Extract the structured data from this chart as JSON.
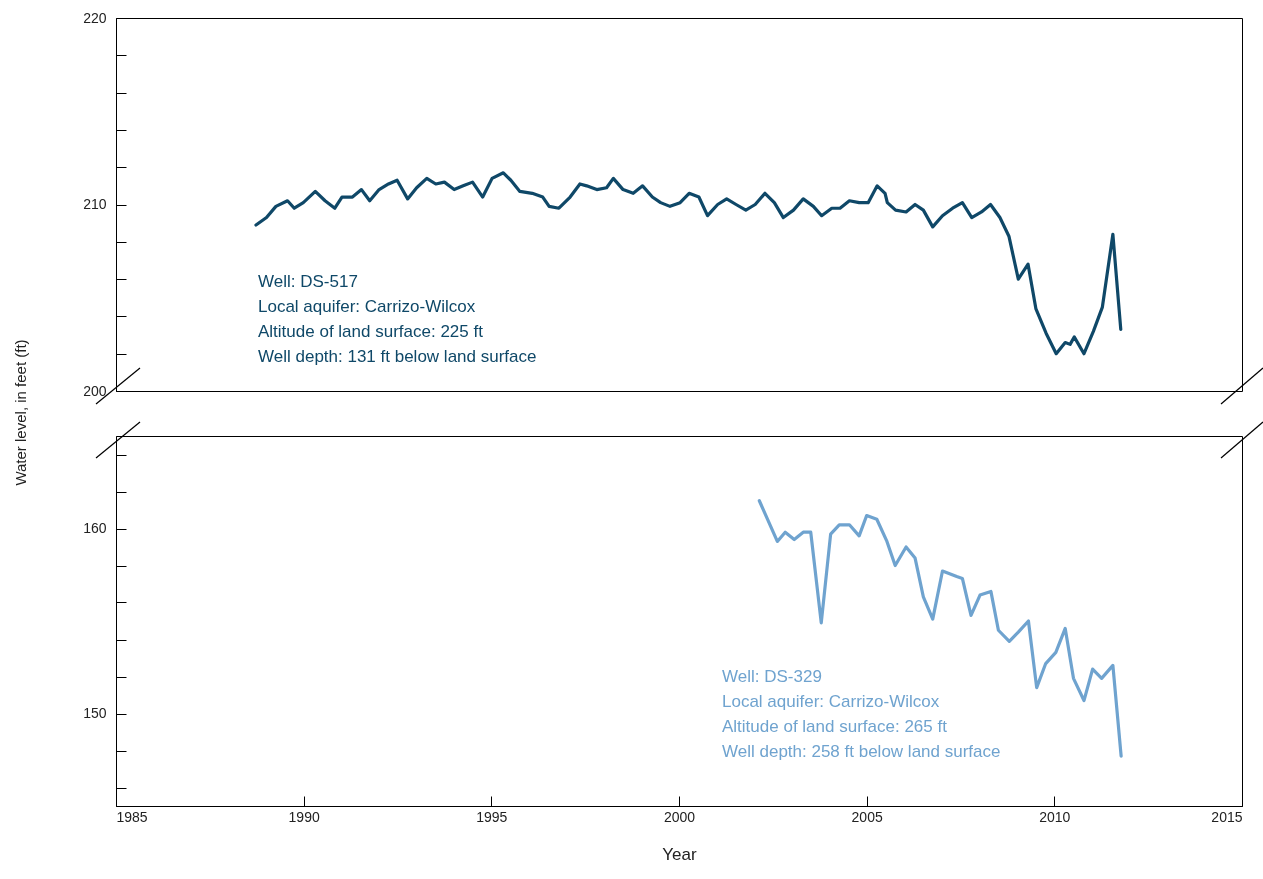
{
  "chart_data": [
    {
      "type": "line",
      "ylabel": "Water level, in feet (ft)",
      "xlim": [
        1985,
        2015
      ],
      "xticks": [
        1985,
        1990,
        1995,
        2000,
        2005,
        2010,
        2015
      ],
      "ylim": [
        200,
        220
      ],
      "yticks": [
        200,
        {
          "value": 202,
          "label": null
        },
        {
          "value": 204,
          "label": null
        },
        {
          "value": 206,
          "label": null
        },
        {
          "value": 208,
          "label": null
        },
        210,
        {
          "value": 212,
          "label": null
        },
        {
          "value": 214,
          "label": null
        },
        {
          "value": 216,
          "label": null
        },
        {
          "value": 218,
          "label": null
        },
        220
      ],
      "tick_labels": "y",
      "grid": false,
      "x": [
        1988.73,
        1989.01,
        1989.26,
        1989.57,
        1989.75,
        1989.99,
        1990.31,
        1990.57,
        1990.83,
        1991.02,
        1991.3,
        1991.54,
        1991.76,
        1992.01,
        1992.26,
        1992.49,
        1992.77,
        1993.01,
        1993.28,
        1993.52,
        1993.75,
        1994.01,
        1994.25,
        1994.5,
        1994.77,
        1995.02,
        1995.32,
        1995.52,
        1995.76,
        1996.09,
        1996.37,
        1996.54,
        1996.8,
        1997.1,
        1997.36,
        1997.54,
        1997.81,
        1998.07,
        1998.25,
        1998.51,
        1998.78,
        1999.03,
        1999.29,
        1999.51,
        1999.76,
        2000.03,
        2000.27,
        2000.53,
        2000.76,
        2001.03,
        2001.27,
        2001.52,
        2001.78,
        2002.03,
        2002.29,
        2002.54,
        2002.78,
        2003.05,
        2003.31,
        2003.58,
        2003.8,
        2004.07,
        2004.29,
        2004.54,
        2004.8,
        2005.04,
        2005.28,
        2005.49,
        2005.55,
        2005.77,
        2006.05,
        2006.29,
        2006.51,
        2006.76,
        2007.02,
        2007.29,
        2007.55,
        2007.8,
        2008.06,
        2008.3,
        2008.55,
        2008.79,
        2009.04,
        2009.3,
        2009.51,
        2009.78,
        2010.05,
        2010.29,
        2010.42,
        2010.53,
        2010.79,
        2011.04,
        2011.28,
        2011.56,
        2011.77
      ],
      "series": [
        {
          "color": "#0f4868",
          "values": [
            208.9,
            209.3,
            209.9,
            210.2,
            209.8,
            210.1,
            210.7,
            210.2,
            209.8,
            210.4,
            210.4,
            210.8,
            210.2,
            210.8,
            211.1,
            211.3,
            210.3,
            210.9,
            211.4,
            211.1,
            211.2,
            210.8,
            211.0,
            211.2,
            210.4,
            211.4,
            211.7,
            211.3,
            210.7,
            210.6,
            210.4,
            209.9,
            209.8,
            210.4,
            211.1,
            211.0,
            210.8,
            210.9,
            211.4,
            210.8,
            210.6,
            211.0,
            210.4,
            210.1,
            209.9,
            210.1,
            210.6,
            210.4,
            209.4,
            210.0,
            210.3,
            210.0,
            209.7,
            210.0,
            210.6,
            210.1,
            209.3,
            209.7,
            210.3,
            209.9,
            209.4,
            209.8,
            209.8,
            210.2,
            210.1,
            210.1,
            211.0,
            210.6,
            210.1,
            209.7,
            209.6,
            210.0,
            209.7,
            208.8,
            209.4,
            209.8,
            210.1,
            209.3,
            209.6,
            210.0,
            209.3,
            208.3,
            206.0,
            206.8,
            204.4,
            203.1,
            202.0,
            202.6,
            202.5,
            202.9,
            202.0,
            203.2,
            204.5,
            208.4,
            203.3
          ]
        }
      ],
      "annotations": [
        "Well:  DS-517",
        "Local aquifer:  Carrizo-Wilcox",
        "Altitude of land surface:  225 ft",
        "Well depth:  131 ft below land surface"
      ]
    },
    {
      "type": "line",
      "xlabel": "Year",
      "xlim": [
        1985,
        2015
      ],
      "xticks": [
        1985,
        1990,
        1995,
        2000,
        2005,
        2010,
        2015
      ],
      "ylim": [
        145,
        165
      ],
      "yticks": [
        {
          "value": 146,
          "label": null
        },
        {
          "value": 148,
          "label": null
        },
        150,
        {
          "value": 152,
          "label": null
        },
        {
          "value": 154,
          "label": null
        },
        {
          "value": 156,
          "label": null
        },
        {
          "value": 158,
          "label": null
        },
        160,
        {
          "value": 162,
          "label": null
        },
        {
          "value": 164,
          "label": null
        }
      ],
      "grid": false,
      "x": [
        2002.14,
        2002.62,
        2002.83,
        2003.07,
        2003.31,
        2003.51,
        2003.79,
        2004.04,
        2004.27,
        2004.54,
        2004.8,
        2005.0,
        2005.27,
        2005.54,
        2005.76,
        2006.05,
        2006.29,
        2006.51,
        2006.76,
        2007.02,
        2007.4,
        2007.55,
        2007.78,
        2008.02,
        2008.31,
        2008.51,
        2008.8,
        2009.04,
        2009.31,
        2009.53,
        2009.77,
        2010.04,
        2010.29,
        2010.51,
        2010.79,
        2011.02,
        2011.26,
        2011.56,
        2011.78
      ],
      "series": [
        {
          "color": "#6fa3cf",
          "values": [
            161.5,
            159.3,
            159.8,
            159.4,
            159.8,
            159.8,
            154.9,
            159.7,
            160.2,
            160.2,
            159.6,
            160.7,
            160.5,
            159.3,
            158.0,
            159.0,
            158.4,
            156.3,
            155.1,
            157.7,
            157.4,
            157.3,
            155.3,
            156.4,
            156.6,
            154.5,
            153.9,
            154.4,
            155.0,
            151.4,
            152.7,
            153.3,
            154.6,
            151.9,
            150.7,
            152.4,
            151.9,
            152.6,
            147.7
          ]
        }
      ],
      "annotations": [
        "Well:  DS-329",
        "Local aquifer:  Carrizo-Wilcox",
        "Altitude of land surface:  265 ft",
        "Well depth:  258 ft below land surface"
      ]
    }
  ]
}
